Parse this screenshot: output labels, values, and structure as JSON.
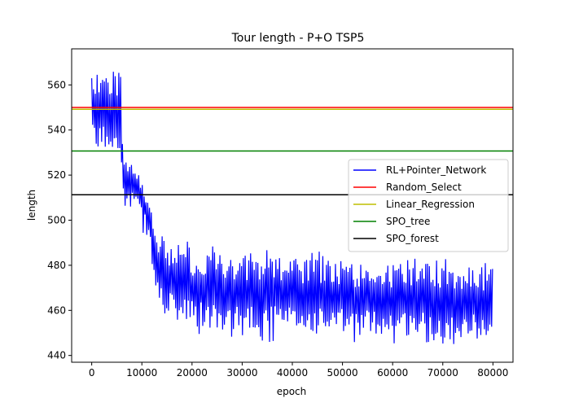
{
  "chart_data": {
    "type": "line",
    "title": "Tour length - P+O TSP5",
    "xlabel": "epoch",
    "ylabel": "length",
    "xlim": [
      -4000,
      84000
    ],
    "ylim": [
      437,
      576
    ],
    "xticks": [
      0,
      10000,
      20000,
      30000,
      40000,
      50000,
      60000,
      70000,
      80000
    ],
    "yticks": [
      440,
      460,
      480,
      500,
      520,
      540,
      560
    ],
    "grid": false,
    "legend_position": "center-right",
    "series": [
      {
        "name": "RL+Pointer_Network",
        "color": "#0000ff",
        "kind": "noisy-band",
        "x": [
          0,
          5800,
          6200,
          8000,
          10000,
          11500,
          12500,
          14000,
          16000,
          20000,
          25000,
          30000,
          40000,
          50000,
          60000,
          70000,
          80000
        ],
        "y_low": [
          529,
          532,
          507,
          508,
          500,
          490,
          470,
          458,
          455,
          452,
          451,
          452,
          450,
          449,
          449,
          448,
          447
        ],
        "y_high": [
          567,
          567,
          531,
          527,
          519,
          509,
          497,
          493,
          490,
          488,
          486,
          485,
          483,
          482,
          481,
          480,
          479
        ],
        "y_min": [
          527,
          527,
          505,
          504,
          495,
          486,
          466,
          453,
          450,
          447,
          449,
          447,
          445,
          445,
          445,
          445,
          445
        ],
        "y_max": [
          571,
          571,
          533,
          531,
          531,
          512,
          502,
          497,
          494,
          491,
          489,
          488,
          487,
          486,
          484,
          483,
          481
        ]
      },
      {
        "name": "Random_Select",
        "color": "#ff0000",
        "kind": "hline",
        "y": 550
      },
      {
        "name": "Linear_Regression",
        "color": "#bfbf00",
        "kind": "hline",
        "y": 549.2
      },
      {
        "name": "SPO_tree",
        "color": "#008000",
        "kind": "hline",
        "y": 530.7
      },
      {
        "name": "SPO_forest",
        "color": "#000000",
        "kind": "hline",
        "y": 511.3
      }
    ]
  }
}
